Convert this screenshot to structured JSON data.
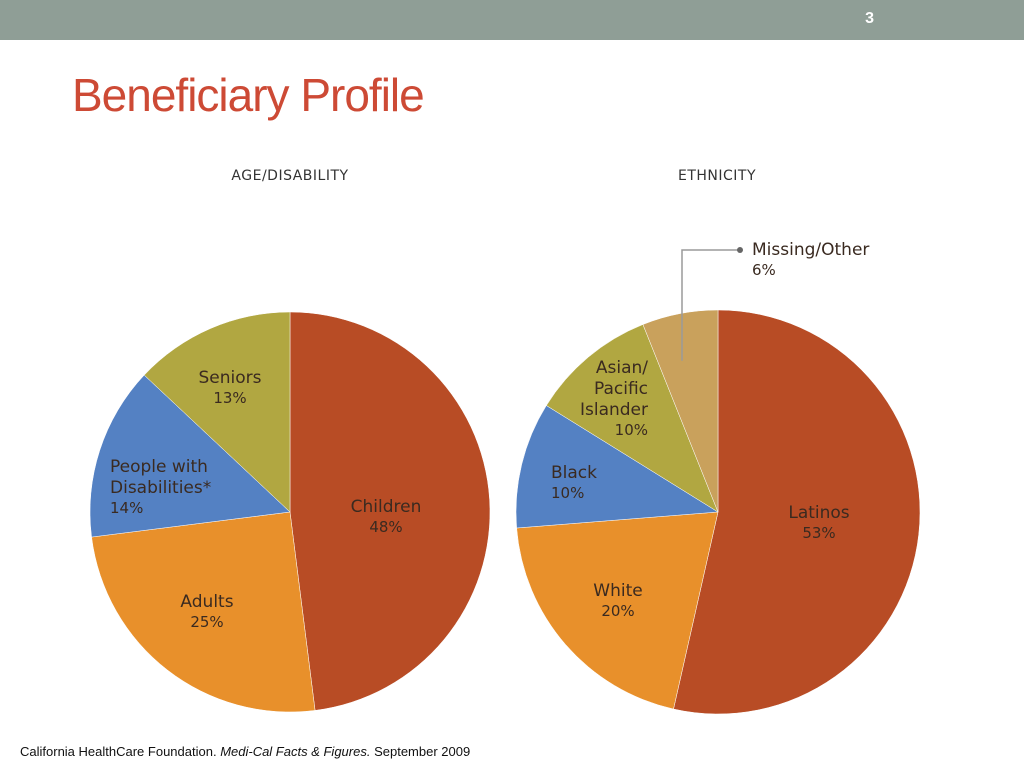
{
  "slide": {
    "number": "3",
    "title": "Beneficiary Profile"
  },
  "colors": {
    "topbar": "#8f9e96",
    "title": "#cd4a35",
    "darkred": "#b84c25",
    "orange": "#e8902b",
    "blue": "#5481c3",
    "olive": "#b1a741",
    "tan": "#c9a15c"
  },
  "chart_data": [
    {
      "type": "pie",
      "title": "AGE/DISABILITY",
      "slices": [
        {
          "label": "Children",
          "value": 48,
          "value_label": "48%",
          "color": "#b84c25"
        },
        {
          "label": "Adults",
          "value": 25,
          "value_label": "25%",
          "color": "#e8902b"
        },
        {
          "label": "People with Disabilities*",
          "label_lines": [
            "People with",
            "Disabilities*"
          ],
          "value": 14,
          "value_label": "14%",
          "color": "#5481c3"
        },
        {
          "label": "Seniors",
          "value": 13,
          "value_label": "13%",
          "color": "#b1a741"
        }
      ]
    },
    {
      "type": "pie",
      "title": "ETHNICITY",
      "slices": [
        {
          "label": "Latinos",
          "value": 53,
          "value_label": "53%",
          "color": "#b84c25"
        },
        {
          "label": "White",
          "value": 20,
          "value_label": "20%",
          "color": "#e8902b"
        },
        {
          "label": "Black",
          "value": 10,
          "value_label": "10%",
          "color": "#5481c3"
        },
        {
          "label": "Asian/ Pacific Islander",
          "label_lines": [
            "Asian/",
            "Pacific",
            "Islander"
          ],
          "value": 10,
          "value_label": "10%",
          "color": "#b1a741"
        },
        {
          "label": "Missing/Other",
          "value": 6,
          "value_label": "6%",
          "color": "#c9a15c",
          "callout": true
        }
      ]
    }
  ],
  "footer": {
    "org": "California HealthCare Foundation.",
    "publication": "Medi-Cal Facts & Figures.",
    "date": "September 2009"
  }
}
